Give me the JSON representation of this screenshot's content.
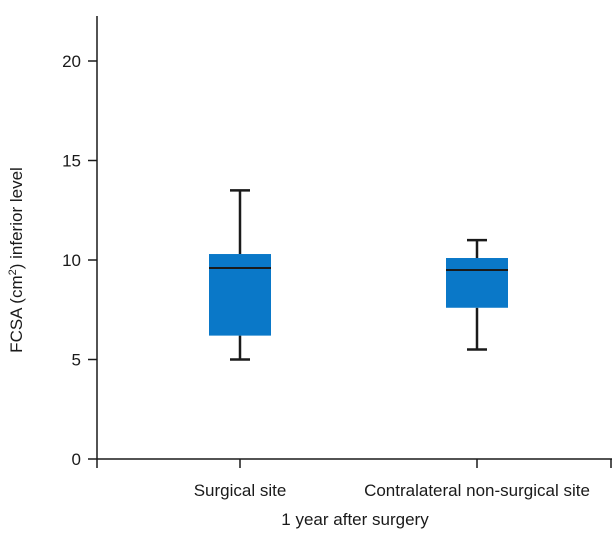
{
  "chart_data": {
    "type": "box",
    "title": "",
    "xlabel": "1 year after surgery",
    "ylabel_parts": {
      "prefix": "FCSA (cm",
      "sup": "2",
      "suffix": ") inferior level"
    },
    "ylim": [
      0,
      20
    ],
    "yticks": [
      0,
      5,
      10,
      15,
      20
    ],
    "ytick_labels": [
      "0",
      "5",
      "10",
      "15",
      "20"
    ],
    "categories": [
      "Surgical site",
      "Contralateral non-surgical site"
    ],
    "boxes": [
      {
        "category": "Surgical site",
        "min": 5.0,
        "q1": 6.2,
        "median": 9.6,
        "q3": 10.3,
        "max": 13.5
      },
      {
        "category": "Contralateral non-surgical site",
        "min": 5.5,
        "q1": 7.6,
        "median": 9.5,
        "q3": 10.1,
        "max": 11.0
      }
    ],
    "box_color": "#0a78c8",
    "grid": false,
    "legend": "none"
  }
}
